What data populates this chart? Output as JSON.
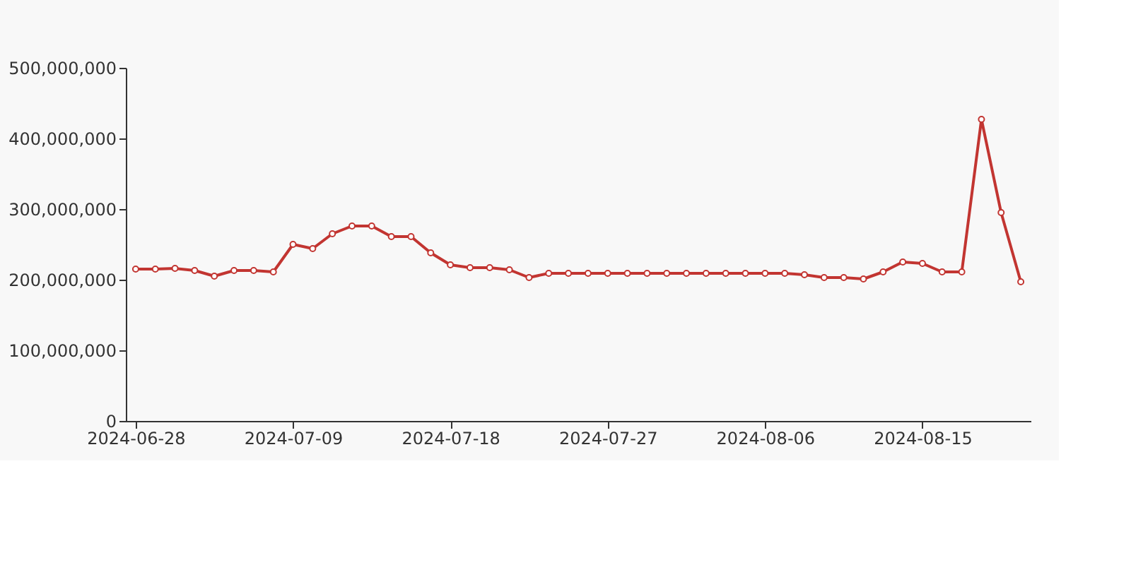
{
  "chart_data": {
    "type": "line",
    "categories": [
      "2024-06-28",
      null,
      null,
      null,
      null,
      null,
      null,
      null,
      "2024-07-09",
      null,
      null,
      null,
      null,
      null,
      null,
      null,
      "2024-07-18",
      null,
      null,
      null,
      null,
      null,
      null,
      null,
      "2024-07-27",
      null,
      null,
      null,
      null,
      null,
      null,
      null,
      "2024-08-06",
      null,
      null,
      null,
      null,
      null,
      null,
      null,
      "2024-08-15",
      null,
      null,
      null,
      null,
      null
    ],
    "series": [
      {
        "color": "#c23531",
        "values": [
          215000000,
          215000000,
          216000000,
          213000000,
          205000000,
          213000000,
          213000000,
          211000000,
          250000000,
          244000000,
          265000000,
          276000000,
          276000000,
          261000000,
          261000000,
          238000000,
          221000000,
          217000000,
          217000000,
          214000000,
          203000000,
          209000000,
          209000000,
          209000000,
          209000000,
          209000000,
          209000000,
          209000000,
          209000000,
          209000000,
          209000000,
          209000000,
          209000000,
          209000000,
          207000000,
          203000000,
          203000000,
          201000000,
          211000000,
          225000000,
          223000000,
          211000000,
          211000000,
          427000000,
          295000000,
          197000000
        ]
      }
    ],
    "ylim": [
      0,
      500000000
    ],
    "yticks": [
      0,
      {
        "value": 100000000,
        "label": "100,000,000"
      },
      {
        "value": 200000000,
        "label": "200,000,000"
      },
      {
        "value": 300000000,
        "label": "300,000,000"
      },
      {
        "value": 400000000,
        "label": "400,000,000"
      },
      {
        "value": 500000000,
        "label": "500,000,000"
      }
    ],
    "grid": false,
    "marker": "circle",
    "line_style": "solid"
  }
}
